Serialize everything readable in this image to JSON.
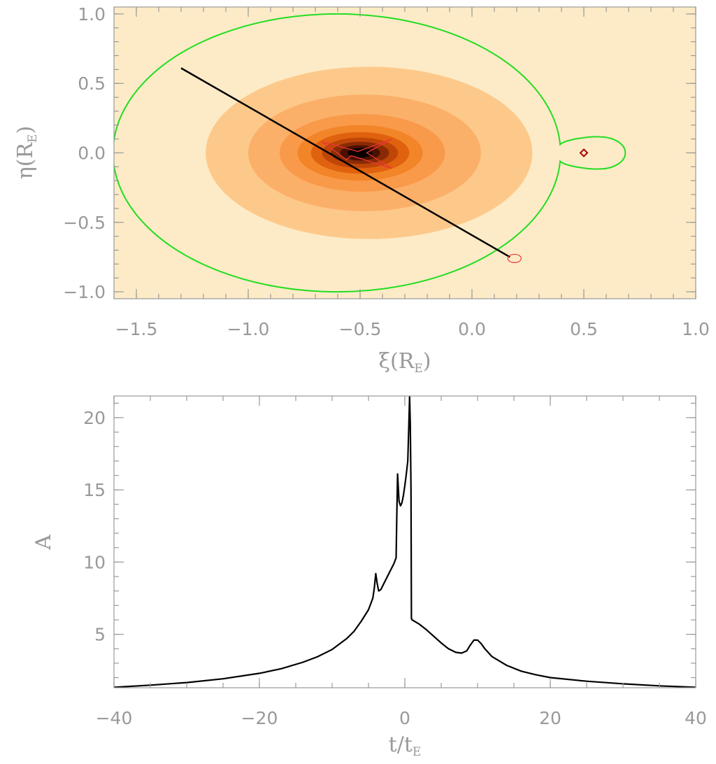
{
  "chart_data": [
    {
      "type": "contour",
      "xlabel": "ξ(R",
      "xlabel_sub": "E",
      "xlabel_close": ")",
      "ylabel": "η(R",
      "ylabel_sub": "E",
      "ylabel_close": ")",
      "xlim": [
        -1.6,
        1.0
      ],
      "ylim": [
        -1.05,
        1.05
      ],
      "x_ticks": [
        -1.5,
        -1.0,
        -0.5,
        0.0,
        0.5,
        1.0
      ],
      "x_tick_labels": [
        "−1.5",
        "−1.0",
        "−0.5",
        "0.0",
        "0.5",
        "1.0"
      ],
      "y_ticks": [
        -1.0,
        -0.5,
        0.0,
        0.5,
        1.0
      ],
      "y_tick_labels": [
        "−1.0",
        "−0.5",
        "0.0",
        "0.5",
        "1.0"
      ],
      "grid": false,
      "background_color": "#fdebc7",
      "contour_levels": [
        {
          "color": "#fdebc7",
          "rx": 1.0,
          "ry": 1.0,
          "cx": -0.5
        },
        {
          "color": "#fdc98a",
          "rx": 0.73,
          "ry": 0.62,
          "cx": -0.46
        },
        {
          "color": "#fbb06a",
          "rx": 0.52,
          "ry": 0.42,
          "cx": -0.48
        },
        {
          "color": "#f99a4a",
          "rx": 0.37,
          "ry": 0.28,
          "cx": -0.49
        },
        {
          "color": "#f28528",
          "rx": 0.28,
          "ry": 0.2,
          "cx": -0.5
        },
        {
          "color": "#e0620e",
          "rx": 0.22,
          "ry": 0.15,
          "cx": -0.5
        },
        {
          "color": "#c04608",
          "rx": 0.17,
          "ry": 0.11,
          "cx": -0.5
        },
        {
          "color": "#8a2a04",
          "rx": 0.13,
          "ry": 0.08,
          "cx": -0.5
        },
        {
          "color": "#4a1002",
          "rx": 0.09,
          "ry": 0.055,
          "cx": -0.5
        },
        {
          "color": "#0a0000",
          "rx": 0.055,
          "ry": 0.035,
          "cx": -0.5
        }
      ],
      "critical_curve": {
        "color": "#22dd22",
        "main_center": [
          -0.5,
          0.0
        ],
        "main_radius": 1.0,
        "secondary_center": [
          0.57,
          0.0
        ],
        "secondary_radius": 0.11
      },
      "caustic": {
        "color": "#e83838",
        "points": [
          [
            -0.56,
            -0.05
          ],
          [
            -0.67,
            0.08
          ],
          [
            -0.51,
            0.01
          ],
          [
            -0.36,
            0.1
          ],
          [
            -0.47,
            0.0
          ],
          [
            -0.36,
            -0.11
          ],
          [
            -0.54,
            -0.02
          ]
        ]
      },
      "trajectory": {
        "color": "#000000",
        "start": [
          -1.3,
          0.61
        ],
        "end": [
          0.17,
          -0.75
        ]
      },
      "source_marker": {
        "color": "#e83838",
        "center": [
          0.19,
          -0.76
        ],
        "radius": 0.03
      },
      "lens_marker": {
        "color": "#aa0000",
        "position": [
          0.5,
          0.0
        ]
      }
    },
    {
      "type": "line",
      "xlabel": "t/t",
      "xlabel_sub": "E",
      "ylabel": "A",
      "xlim": [
        -40,
        40
      ],
      "ylim": [
        1.3,
        21.5
      ],
      "x_ticks": [
        -40,
        -20,
        0,
        20,
        40
      ],
      "x_tick_labels": [
        "−40",
        "−20",
        "0",
        "20",
        "40"
      ],
      "y_ticks": [
        5,
        10,
        15,
        20
      ],
      "y_tick_labels": [
        "5",
        "10",
        "15",
        "20"
      ],
      "grid": false,
      "series": [
        {
          "color": "#000000",
          "x": [
            -40,
            -35,
            -30,
            -25,
            -20,
            -17,
            -14,
            -12,
            -10,
            -8,
            -7,
            -6,
            -5,
            -4.4,
            -4.2,
            -4.0,
            -3.8,
            -3.6,
            -3.3,
            -3.0,
            -2.5,
            -2.0,
            -1.5,
            -1.2,
            -1.1,
            -1.0,
            -0.8,
            -0.6,
            -0.4,
            -0.2,
            0.0,
            0.2,
            0.4,
            0.55,
            0.65,
            0.75,
            0.85,
            0.9,
            1.0,
            2.0,
            3.0,
            4.0,
            5.0,
            6.0,
            7.0,
            7.8,
            8.5,
            9.0,
            9.5,
            10.0,
            10.5,
            11.0,
            12.0,
            14.0,
            16.0,
            18.0,
            20.0,
            25.0,
            30.0,
            35.0,
            40.0
          ],
          "y": [
            1.33,
            1.48,
            1.66,
            1.92,
            2.3,
            2.62,
            3.07,
            3.45,
            3.95,
            4.7,
            5.2,
            5.9,
            6.7,
            7.5,
            8.2,
            9.2,
            8.5,
            8.0,
            8.1,
            8.4,
            8.9,
            9.4,
            9.9,
            10.3,
            13.5,
            16.1,
            14.2,
            13.9,
            14.1,
            14.6,
            15.3,
            16.1,
            17.0,
            19.5,
            21.5,
            19.5,
            15.0,
            6.1,
            6.0,
            5.7,
            5.3,
            4.85,
            4.4,
            4.0,
            3.75,
            3.7,
            3.85,
            4.25,
            4.6,
            4.6,
            4.35,
            4.0,
            3.45,
            2.85,
            2.45,
            2.2,
            2.0,
            1.75,
            1.57,
            1.43,
            1.33
          ]
        }
      ]
    }
  ]
}
